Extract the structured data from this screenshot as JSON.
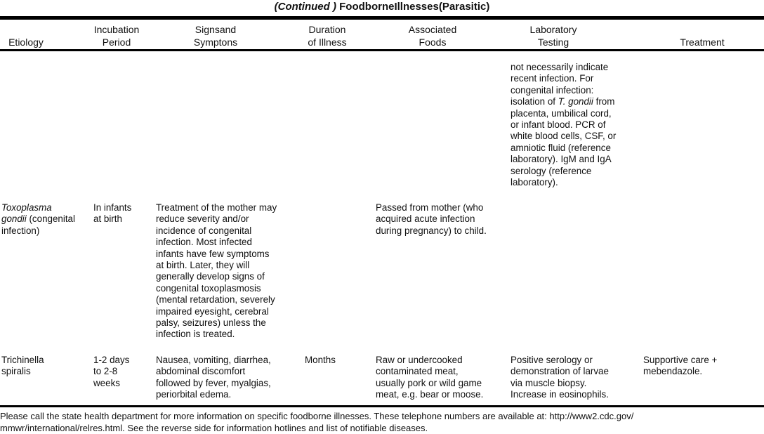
{
  "title": {
    "prefix": "(Continued )",
    "main": "FoodborneIllnesses(Parasitic)"
  },
  "headers": {
    "etiology": "\nEtiology",
    "incubation": "Incubation\nPeriod",
    "signs": "Signsand\nSymptons",
    "duration": "Duration\nof Illness",
    "foods": "Associated\nFoods",
    "lab": "Laboratory\nTesting",
    "treatment": "\nTreatment"
  },
  "rows": [
    {
      "lab_before": "not necessarily indicate\nrecent infection. For\ncongenital infection:\nisolation of ",
      "lab_italic": "T. gondii",
      "lab_after": " from\nplacenta, umbilical cord,\nor infant blood. PCR of\nwhite blood cells, CSF, or\namniotic fluid (reference\nlaboratory). IgM and IgA\nserology (reference\nlaboratory)."
    },
    {
      "etiology_italic": "Toxoplasma\ngondii",
      "etiology_rest": " (congenital\ninfection)",
      "incubation": "In infants\nat birth",
      "signs": "Treatment of the mother may\nreduce severity and/or\nincidence of congenital\ninfection. Most infected\ninfants have few symptoms\nat birth. Later, they will\ngenerally develop signs of\ncongenital toxoplasmosis\n(mental retardation, severely\nimpaired eyesight, cerebral\npalsy, seizures) unless the\ninfection is treated.",
      "foods": "Passed from mother (who\nacquired acute infection\nduring pregnancy) to child."
    },
    {
      "etiology": "Trichinella\nspiralis",
      "incubation": "1-2 days\nto 2-8\nweeks",
      "signs": "Nausea, vomiting, diarrhea,\nabdominal discomfort\nfollowed by fever, myalgias,\nperiorbital edema.",
      "duration": "Months",
      "foods": "Raw or undercooked\ncontaminated meat,\nusually pork or wild game\nmeat, e.g. bear or moose.",
      "lab": "Positive serology or\ndemonstration of larvae\nvia muscle biopsy.\nIncrease in eosinophils.",
      "treatment": "Supportive care +\nmebendazole."
    }
  ],
  "footer": "Please call the state health department for more information on specific foodborne illnesses. These telephone numbers are available at: http://www2.cdc.gov/\nmmwr/international/relres.html. See the reverse side for information hotlines and list of notifiable diseases."
}
